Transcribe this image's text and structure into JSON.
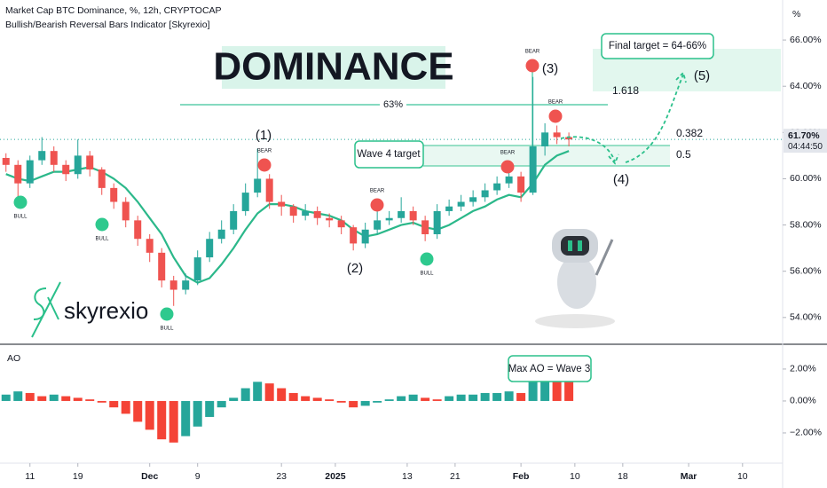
{
  "chart_data": {
    "type": "candlestick",
    "title": "Market Cap BTC Dominance, %, 12h, CRYPTOCAP",
    "subtitle": "Bullish/Bearish Reversal Bars Indicator [Skyrexio]",
    "unit_label": "%",
    "up_color": "#26a69a",
    "down_color": "#ef5350",
    "ma_color": "#2bb88a",
    "open": [
      60.9,
      60.6,
      59.8,
      60.8,
      61.2,
      60.6,
      60.2,
      61.0,
      60.4,
      59.6,
      59.0,
      58.2,
      57.4,
      56.8,
      55.6,
      55.2,
      55.6,
      56.6,
      57.4,
      57.8,
      58.6,
      59.4,
      60.0,
      59.0,
      58.8,
      58.4,
      58.6,
      58.3,
      58.2,
      57.9,
      57.2,
      57.8,
      58.2,
      58.3,
      58.6,
      58.2,
      57.6,
      58.6,
      58.8,
      59.0,
      59.2,
      59.5,
      59.8,
      60.1,
      59.4,
      61.4,
      62.0,
      61.8
    ],
    "high": [
      61.1,
      60.8,
      61.0,
      61.8,
      61.4,
      60.8,
      61.7,
      61.2,
      60.5,
      59.8,
      59.2,
      58.4,
      57.6,
      57.0,
      55.8,
      55.9,
      56.9,
      57.7,
      58.2,
      58.9,
      59.8,
      61.3,
      60.2,
      59.3,
      58.9,
      58.9,
      58.8,
      58.5,
      58.4,
      58.0,
      58.1,
      58.6,
      58.6,
      59.2,
      58.8,
      58.4,
      58.9,
      59.1,
      59.3,
      59.5,
      59.8,
      60.1,
      60.6,
      60.3,
      64.4,
      62.4,
      62.3,
      62.0
    ],
    "low": [
      60.3,
      59.1,
      59.6,
      60.6,
      60.3,
      59.9,
      60.0,
      60.1,
      59.3,
      58.7,
      57.9,
      57.1,
      56.4,
      55.3,
      54.5,
      55.0,
      55.4,
      56.4,
      57.2,
      57.6,
      58.4,
      59.2,
      58.7,
      58.4,
      58.1,
      58.2,
      58.0,
      57.9,
      57.6,
      56.9,
      57.0,
      57.6,
      58.0,
      58.1,
      58.0,
      57.3,
      57.4,
      58.4,
      58.6,
      58.8,
      59.0,
      59.3,
      59.6,
      59.0,
      59.3,
      61.0,
      61.5,
      61.4
    ],
    "close": [
      60.6,
      59.8,
      60.8,
      61.2,
      60.6,
      60.2,
      61.0,
      60.4,
      59.6,
      59.0,
      58.2,
      57.4,
      56.8,
      55.6,
      55.2,
      55.6,
      56.6,
      57.4,
      57.8,
      58.6,
      59.4,
      60.0,
      59.0,
      58.8,
      58.4,
      58.6,
      58.3,
      58.2,
      57.9,
      57.2,
      57.8,
      58.2,
      58.3,
      58.6,
      58.2,
      57.6,
      58.6,
      58.8,
      59.0,
      59.2,
      59.5,
      59.8,
      60.1,
      59.4,
      61.4,
      62.0,
      61.8,
      61.7
    ],
    "ma": [
      60.2,
      60.0,
      59.9,
      60.1,
      60.3,
      60.3,
      60.4,
      60.5,
      60.3,
      60.0,
      59.6,
      59.0,
      58.3,
      57.6,
      56.6,
      55.8,
      55.5,
      55.7,
      56.3,
      57.0,
      57.8,
      58.5,
      58.9,
      58.9,
      58.8,
      58.6,
      58.5,
      58.4,
      58.2,
      57.8,
      57.5,
      57.6,
      57.8,
      58.0,
      58.1,
      57.9,
      57.8,
      58.0,
      58.3,
      58.6,
      58.8,
      59.1,
      59.3,
      59.2,
      59.8,
      60.6,
      61.0,
      61.2
    ],
    "xlim": [
      0,
      65.2
    ],
    "xticks": [
      {
        "value": 2.5,
        "label": "11"
      },
      {
        "value": 6.5,
        "label": "19"
      },
      {
        "value": 12.5,
        "label": "Dec"
      },
      {
        "value": 16.5,
        "label": "9"
      },
      {
        "value": 23.5,
        "label": "23"
      },
      {
        "value": 28,
        "label": "2025"
      },
      {
        "value": 34,
        "label": "13"
      },
      {
        "value": 38,
        "label": "21"
      },
      {
        "value": 43.5,
        "label": "Feb"
      },
      {
        "value": 48,
        "label": "10"
      },
      {
        "value": 52,
        "label": "18"
      },
      {
        "value": 57.5,
        "label": "Mar"
      },
      {
        "value": 62,
        "label": "10"
      }
    ],
    "ylim": [
      52.88,
      67.73
    ],
    "yticks": [
      {
        "value": 54,
        "label": "54.00%"
      },
      {
        "value": 56,
        "label": "56.00%"
      },
      {
        "value": 58,
        "label": "58.00%"
      },
      {
        "value": 60,
        "label": "60.00%"
      },
      {
        "value": 62,
        "label": "62.00%"
      },
      {
        "value": 64,
        "label": "64.00%"
      },
      {
        "value": 66,
        "label": "66.00%"
      }
    ],
    "last_price": {
      "value": 61.7,
      "label": "61.70%"
    },
    "countdown": "04:44:50",
    "annotations": {
      "headline": "DOMINANCE",
      "level_63": "63%",
      "fib_1618": "1.618",
      "fib_0382": "0.382",
      "fib_05": "0.5",
      "final_target": "Final target = 64-66%",
      "wave_4_target": "Wave 4 target",
      "wave_1": "(1)",
      "wave_2": "(2)",
      "wave_3": "(3)",
      "wave_4": "(4)",
      "wave_5": "(5)",
      "bear": "BEAR",
      "bull": "BULL",
      "brand": "skyrexio",
      "max_ao": "Max AO = Wave 3"
    },
    "ao": {
      "name": "AO",
      "values": [
        0.4,
        0.6,
        0.5,
        0.3,
        0.4,
        0.3,
        0.2,
        0.1,
        -0.1,
        -0.4,
        -0.8,
        -1.3,
        -1.8,
        -2.4,
        -2.6,
        -2.2,
        -1.6,
        -1.0,
        -0.4,
        0.2,
        0.8,
        1.2,
        1.1,
        0.8,
        0.5,
        0.3,
        0.2,
        0.1,
        -0.1,
        -0.4,
        -0.3,
        -0.1,
        0.1,
        0.3,
        0.4,
        0.2,
        0.1,
        0.3,
        0.4,
        0.4,
        0.5,
        0.5,
        0.6,
        0.5,
        1.2,
        1.6,
        1.5,
        1.3
      ],
      "up_color": "#26a69a",
      "down_color": "#f44336",
      "ylim": [
        -3.78,
        3.44
      ],
      "yticks": [
        {
          "value": 2,
          "label": "2.00%"
        },
        {
          "value": 0,
          "label": "0.00%"
        },
        {
          "value": -2,
          "label": "−2.00%"
        }
      ]
    }
  }
}
